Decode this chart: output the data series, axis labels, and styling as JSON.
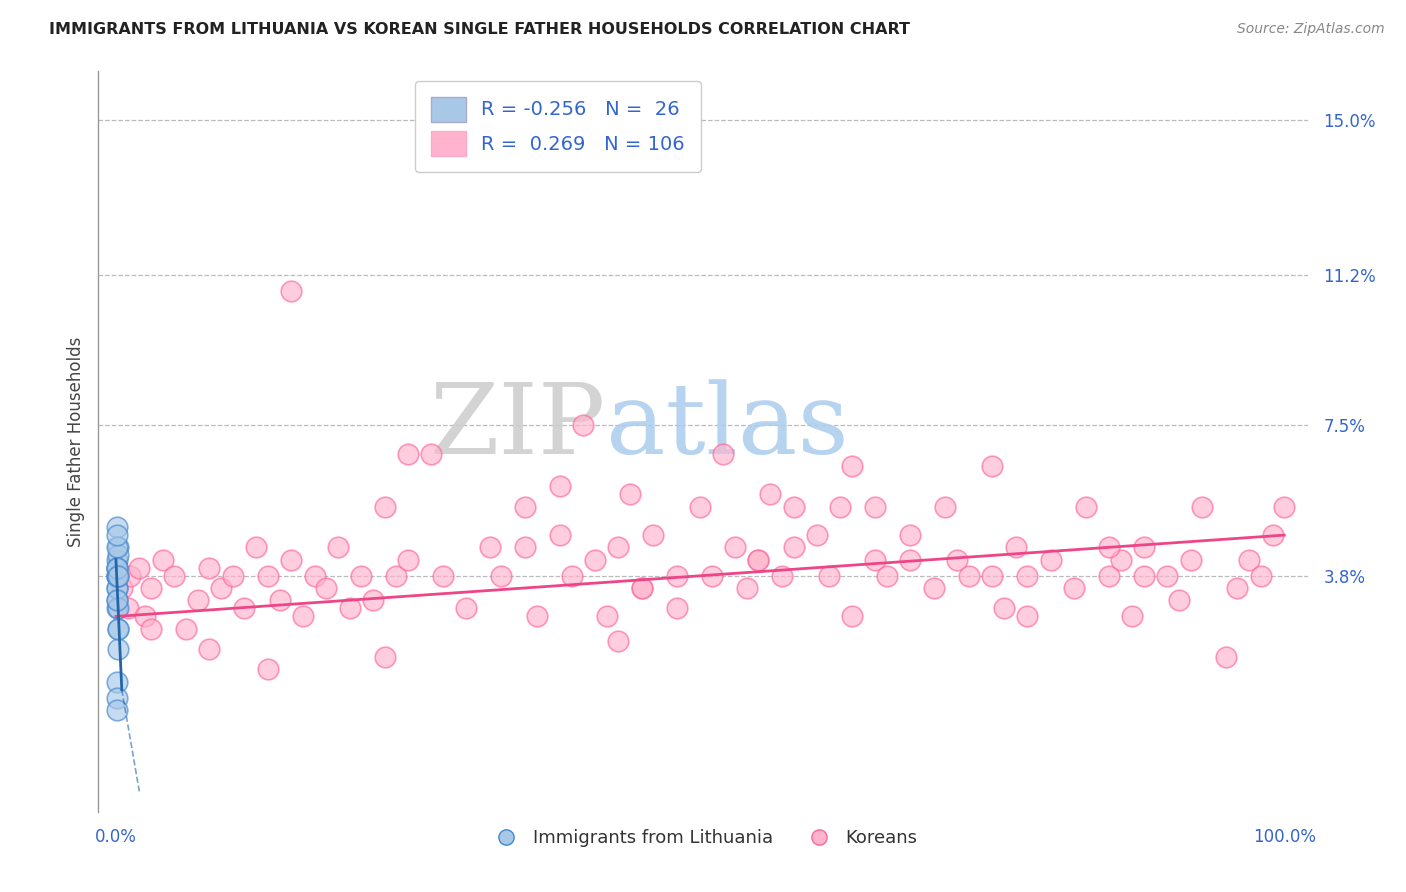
{
  "title": "IMMIGRANTS FROM LITHUANIA VS KOREAN SINGLE FATHER HOUSEHOLDS CORRELATION CHART",
  "source": "Source: ZipAtlas.com",
  "ylabel": "Single Father Households",
  "xlim": [
    -0.015,
    1.02
  ],
  "ylim": [
    -0.02,
    0.162
  ],
  "blue_R": -0.256,
  "blue_N": 26,
  "pink_R": 0.269,
  "pink_N": 106,
  "blue_color": "#a8c8e8",
  "pink_color": "#ffb3cc",
  "blue_edge_color": "#4488cc",
  "pink_edge_color": "#ff6699",
  "blue_line_color": "#2266aa",
  "pink_line_color": "#ee4488",
  "legend_label_blue": "Immigrants from Lithuania",
  "legend_label_pink": "Koreans",
  "watermark_ZIP": "ZIP",
  "watermark_atlas": "atlas",
  "background_color": "#ffffff",
  "blue_scatter_x": [
    0.0005,
    0.001,
    0.0008,
    0.0015,
    0.001,
    0.0005,
    0.002,
    0.001,
    0.0012,
    0.0008,
    0.001,
    0.0015,
    0.0005,
    0.002,
    0.001,
    0.0015,
    0.0008,
    0.001,
    0.0012,
    0.0018,
    0.0005,
    0.001,
    0.0015,
    0.002,
    0.001,
    0.0008
  ],
  "blue_scatter_y": [
    0.038,
    0.042,
    0.035,
    0.045,
    0.04,
    0.03,
    0.043,
    0.032,
    0.038,
    0.05,
    0.035,
    0.025,
    0.04,
    0.02,
    0.045,
    0.038,
    0.048,
    0.012,
    0.008,
    0.03,
    0.038,
    0.04,
    0.025,
    0.038,
    0.032,
    0.005
  ],
  "pink_scatter_x": [
    0.005,
    0.01,
    0.012,
    0.02,
    0.025,
    0.03,
    0.04,
    0.05,
    0.06,
    0.07,
    0.08,
    0.09,
    0.1,
    0.11,
    0.12,
    0.13,
    0.14,
    0.15,
    0.16,
    0.17,
    0.18,
    0.19,
    0.2,
    0.21,
    0.22,
    0.23,
    0.24,
    0.25,
    0.27,
    0.28,
    0.3,
    0.32,
    0.33,
    0.35,
    0.36,
    0.38,
    0.39,
    0.4,
    0.41,
    0.42,
    0.43,
    0.44,
    0.45,
    0.46,
    0.48,
    0.5,
    0.51,
    0.52,
    0.53,
    0.54,
    0.55,
    0.56,
    0.57,
    0.58,
    0.6,
    0.61,
    0.62,
    0.63,
    0.65,
    0.66,
    0.68,
    0.7,
    0.71,
    0.72,
    0.73,
    0.75,
    0.76,
    0.77,
    0.78,
    0.8,
    0.82,
    0.83,
    0.85,
    0.86,
    0.87,
    0.88,
    0.9,
    0.91,
    0.92,
    0.93,
    0.95,
    0.96,
    0.97,
    0.98,
    0.99,
    1.0,
    0.15,
    0.25,
    0.35,
    0.45,
    0.55,
    0.65,
    0.75,
    0.85,
    0.38,
    0.48,
    0.58,
    0.68,
    0.78,
    0.88,
    0.03,
    0.08,
    0.13,
    0.23,
    0.43,
    0.63
  ],
  "pink_scatter_y": [
    0.035,
    0.03,
    0.038,
    0.04,
    0.028,
    0.035,
    0.042,
    0.038,
    0.025,
    0.032,
    0.04,
    0.035,
    0.038,
    0.03,
    0.045,
    0.038,
    0.032,
    0.042,
    0.028,
    0.038,
    0.035,
    0.045,
    0.03,
    0.038,
    0.032,
    0.055,
    0.038,
    0.042,
    0.068,
    0.038,
    0.03,
    0.045,
    0.038,
    0.055,
    0.028,
    0.06,
    0.038,
    0.075,
    0.042,
    0.028,
    0.045,
    0.058,
    0.035,
    0.048,
    0.03,
    0.055,
    0.038,
    0.068,
    0.045,
    0.035,
    0.042,
    0.058,
    0.038,
    0.045,
    0.048,
    0.038,
    0.055,
    0.065,
    0.042,
    0.038,
    0.048,
    0.035,
    0.055,
    0.042,
    0.038,
    0.065,
    0.03,
    0.045,
    0.038,
    0.042,
    0.035,
    0.055,
    0.038,
    0.042,
    0.028,
    0.045,
    0.038,
    0.032,
    0.042,
    0.055,
    0.018,
    0.035,
    0.042,
    0.038,
    0.048,
    0.055,
    0.108,
    0.068,
    0.045,
    0.035,
    0.042,
    0.055,
    0.038,
    0.045,
    0.048,
    0.038,
    0.055,
    0.042,
    0.028,
    0.038,
    0.025,
    0.02,
    0.015,
    0.018,
    0.022,
    0.028
  ],
  "pink_line_x0": 0.0,
  "pink_line_x1": 1.0,
  "pink_line_y0": 0.028,
  "pink_line_y1": 0.048,
  "blue_line_x0": 0.0,
  "blue_line_x1": 0.005,
  "blue_line_y0": 0.042,
  "blue_line_y1": 0.01
}
